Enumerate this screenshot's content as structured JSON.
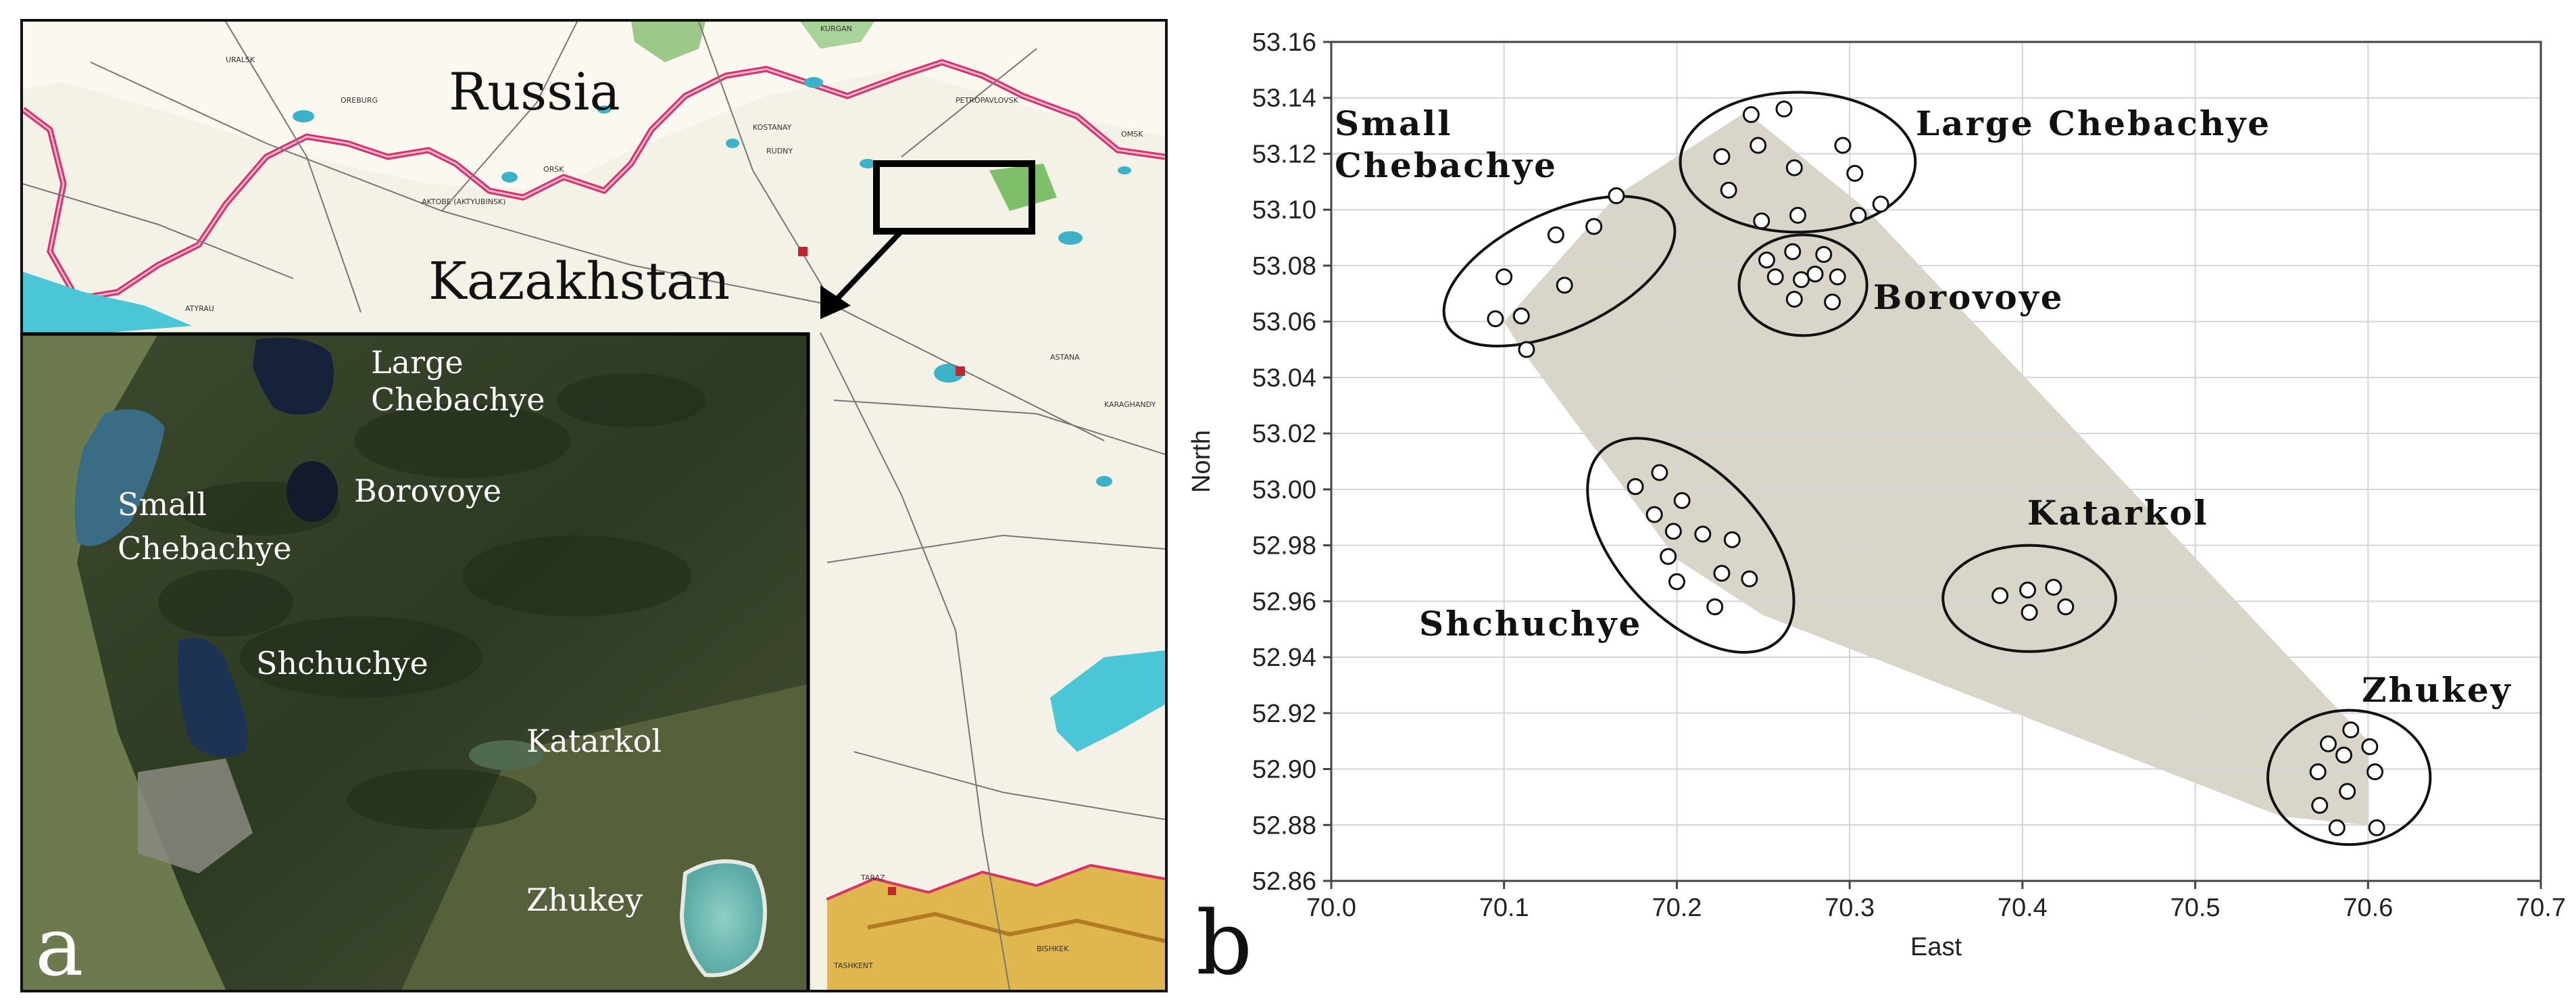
{
  "panel_a": {
    "letter": "a",
    "country_labels": [
      "Russia",
      "Kazakhstan"
    ],
    "inset_labels": {
      "large_chebachye": [
        "Large",
        "Chebachye"
      ],
      "small_chebachye": [
        "Small",
        "Chebachye"
      ],
      "borovoye": "Borovoye",
      "shchuchye": "Shchuchye",
      "katarkol": "Katarkol",
      "zhukey": "Zhukey"
    },
    "map_place_labels": [
      "URALSK",
      "OREBURG",
      "ORSK",
      "AKTOBE (AKTYUBINSK)",
      "KOSTANAY",
      "RUDNY",
      "PETROPAVLOVSK",
      "OMSK",
      "ATYRAU",
      "ASTANA",
      "KARAGHANDY",
      "TARAZ",
      "BISHKEK",
      "TASHKENT",
      "KURGAN"
    ]
  },
  "chart_data": {
    "type": "scatter",
    "panel_letter": "b",
    "xlabel": "East",
    "ylabel": "North",
    "xlim": [
      70.0,
      70.7
    ],
    "ylim": [
      52.86,
      53.16
    ],
    "x_ticks": [
      "70.0",
      "70.1",
      "70.2",
      "70.3",
      "70.4",
      "70.5",
      "70.6",
      "70.7"
    ],
    "y_ticks": [
      "52.86",
      "52.88",
      "52.90",
      "52.92",
      "52.94",
      "52.96",
      "52.98",
      "53.00",
      "53.02",
      "53.04",
      "53.06",
      "53.08",
      "53.10",
      "53.12",
      "53.14",
      "53.16"
    ],
    "grid": true,
    "hull_color": "#d9d5c8",
    "hull": [
      [
        70.1,
        53.06
      ],
      [
        70.165,
        53.105
      ],
      [
        70.24,
        53.135
      ],
      [
        70.31,
        53.1
      ],
      [
        70.6,
        52.91
      ],
      [
        70.6,
        52.88
      ],
      [
        70.55,
        52.883
      ],
      [
        70.25,
        52.955
      ],
      [
        70.2,
        52.975
      ],
      [
        70.11,
        53.05
      ]
    ],
    "groups": [
      {
        "name": "Small Chebachye",
        "label_lines": [
          "Small",
          "Chebachye"
        ],
        "points": [
          [
            70.095,
            53.061
          ],
          [
            70.1,
            53.076
          ],
          [
            70.11,
            53.062
          ],
          [
            70.113,
            53.05
          ],
          [
            70.13,
            53.091
          ],
          [
            70.135,
            53.073
          ],
          [
            70.152,
            53.094
          ],
          [
            70.165,
            53.105
          ]
        ],
        "ellipse": {
          "cx": 70.132,
          "cy": 53.078,
          "rx": 0.072,
          "ry": 0.021,
          "angle_deg": 25
        }
      },
      {
        "name": "Large Chebachye",
        "label_lines": [
          "Large Chebachye"
        ],
        "points": [
          [
            70.226,
            53.119
          ],
          [
            70.23,
            53.107
          ],
          [
            70.243,
            53.134
          ],
          [
            70.247,
            53.123
          ],
          [
            70.249,
            53.096
          ],
          [
            70.262,
            53.136
          ],
          [
            70.268,
            53.115
          ],
          [
            70.27,
            53.098
          ],
          [
            70.296,
            53.123
          ],
          [
            70.303,
            53.113
          ],
          [
            70.305,
            53.098
          ],
          [
            70.318,
            53.102
          ]
        ],
        "ellipse": {
          "cx": 70.27,
          "cy": 53.117,
          "rx": 0.068,
          "ry": 0.025,
          "angle_deg": 0
        }
      },
      {
        "name": "Borovoye",
        "label_lines": [
          "Borovoye"
        ],
        "points": [
          [
            70.252,
            53.082
          ],
          [
            70.257,
            53.076
          ],
          [
            70.267,
            53.085
          ],
          [
            70.268,
            53.068
          ],
          [
            70.272,
            53.075
          ],
          [
            70.28,
            53.077
          ],
          [
            70.285,
            53.084
          ],
          [
            70.29,
            53.067
          ],
          [
            70.293,
            53.076
          ]
        ],
        "ellipse": {
          "cx": 70.273,
          "cy": 53.073,
          "rx": 0.037,
          "ry": 0.018,
          "angle_deg": 0
        }
      },
      {
        "name": "Shchuchye",
        "label_lines": [
          "Shchuchye"
        ],
        "points": [
          [
            70.176,
            53.001
          ],
          [
            70.187,
            52.991
          ],
          [
            70.19,
            53.006
          ],
          [
            70.195,
            52.976
          ],
          [
            70.198,
            52.985
          ],
          [
            70.2,
            52.967
          ],
          [
            70.203,
            52.996
          ],
          [
            70.215,
            52.984
          ],
          [
            70.222,
            52.958
          ],
          [
            70.226,
            52.97
          ],
          [
            70.232,
            52.982
          ],
          [
            70.242,
            52.968
          ]
        ],
        "ellipse": {
          "cx": 70.208,
          "cy": 52.98,
          "rx": 0.075,
          "ry": 0.026,
          "angle_deg": -47
        }
      },
      {
        "name": "Katarkol",
        "label_lines": [
          "Katarkol"
        ],
        "points": [
          [
            70.387,
            52.962
          ],
          [
            70.403,
            52.964
          ],
          [
            70.404,
            52.956
          ],
          [
            70.418,
            52.965
          ],
          [
            70.425,
            52.958
          ]
        ],
        "ellipse": {
          "cx": 70.404,
          "cy": 52.961,
          "rx": 0.05,
          "ry": 0.019,
          "angle_deg": 0
        }
      },
      {
        "name": "Zhukey",
        "label_lines": [
          "Zhukey"
        ],
        "points": [
          [
            70.571,
            52.899
          ],
          [
            70.572,
            52.887
          ],
          [
            70.577,
            52.909
          ],
          [
            70.582,
            52.879
          ],
          [
            70.586,
            52.905
          ],
          [
            70.588,
            52.892
          ],
          [
            70.59,
            52.914
          ],
          [
            70.601,
            52.908
          ],
          [
            70.604,
            52.899
          ],
          [
            70.605,
            52.879
          ]
        ],
        "ellipse": {
          "cx": 70.589,
          "cy": 52.897,
          "rx": 0.047,
          "ry": 0.024,
          "angle_deg": 0
        }
      }
    ]
  }
}
